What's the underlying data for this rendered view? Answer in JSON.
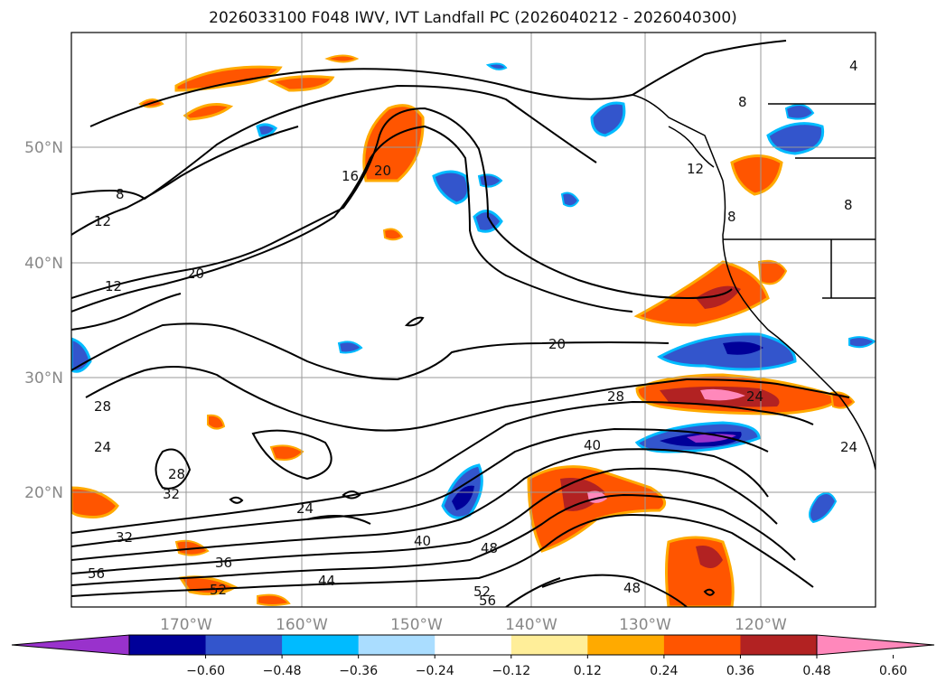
{
  "title": "2026033100 F048 IWV, IVT Landfall PC (2026040212 - 2026040300)",
  "lat_labels": [
    "50°N",
    "40°N",
    "30°N",
    "20°N"
  ],
  "lon_labels": [
    "170°W",
    "160°W",
    "150°W",
    "140°W",
    "130°W",
    "120°W"
  ],
  "colorbar": {
    "colors": [
      "#9932CC",
      "#000099",
      "#3355CC",
      "#00BBFF",
      "#AADDFF",
      "#FFFFFF",
      "#FFEE99",
      "#FFAA00",
      "#FF5500",
      "#B22222",
      "#FF88BB"
    ],
    "ticks": [
      "−0.60",
      "−0.48",
      "−0.36",
      "−0.24",
      "−0.12",
      "0.12",
      "0.24",
      "0.36",
      "0.48",
      "0.60"
    ]
  },
  "contour_labels": [
    "8",
    "12",
    "12",
    "20",
    "16",
    "20",
    "20",
    "28",
    "24",
    "40",
    "28",
    "24",
    "28",
    "32",
    "24",
    "32",
    "36",
    "56",
    "52",
    "44",
    "40",
    "48",
    "52",
    "56",
    "48",
    "8",
    "12",
    "8",
    "8",
    "24",
    "4"
  ]
}
